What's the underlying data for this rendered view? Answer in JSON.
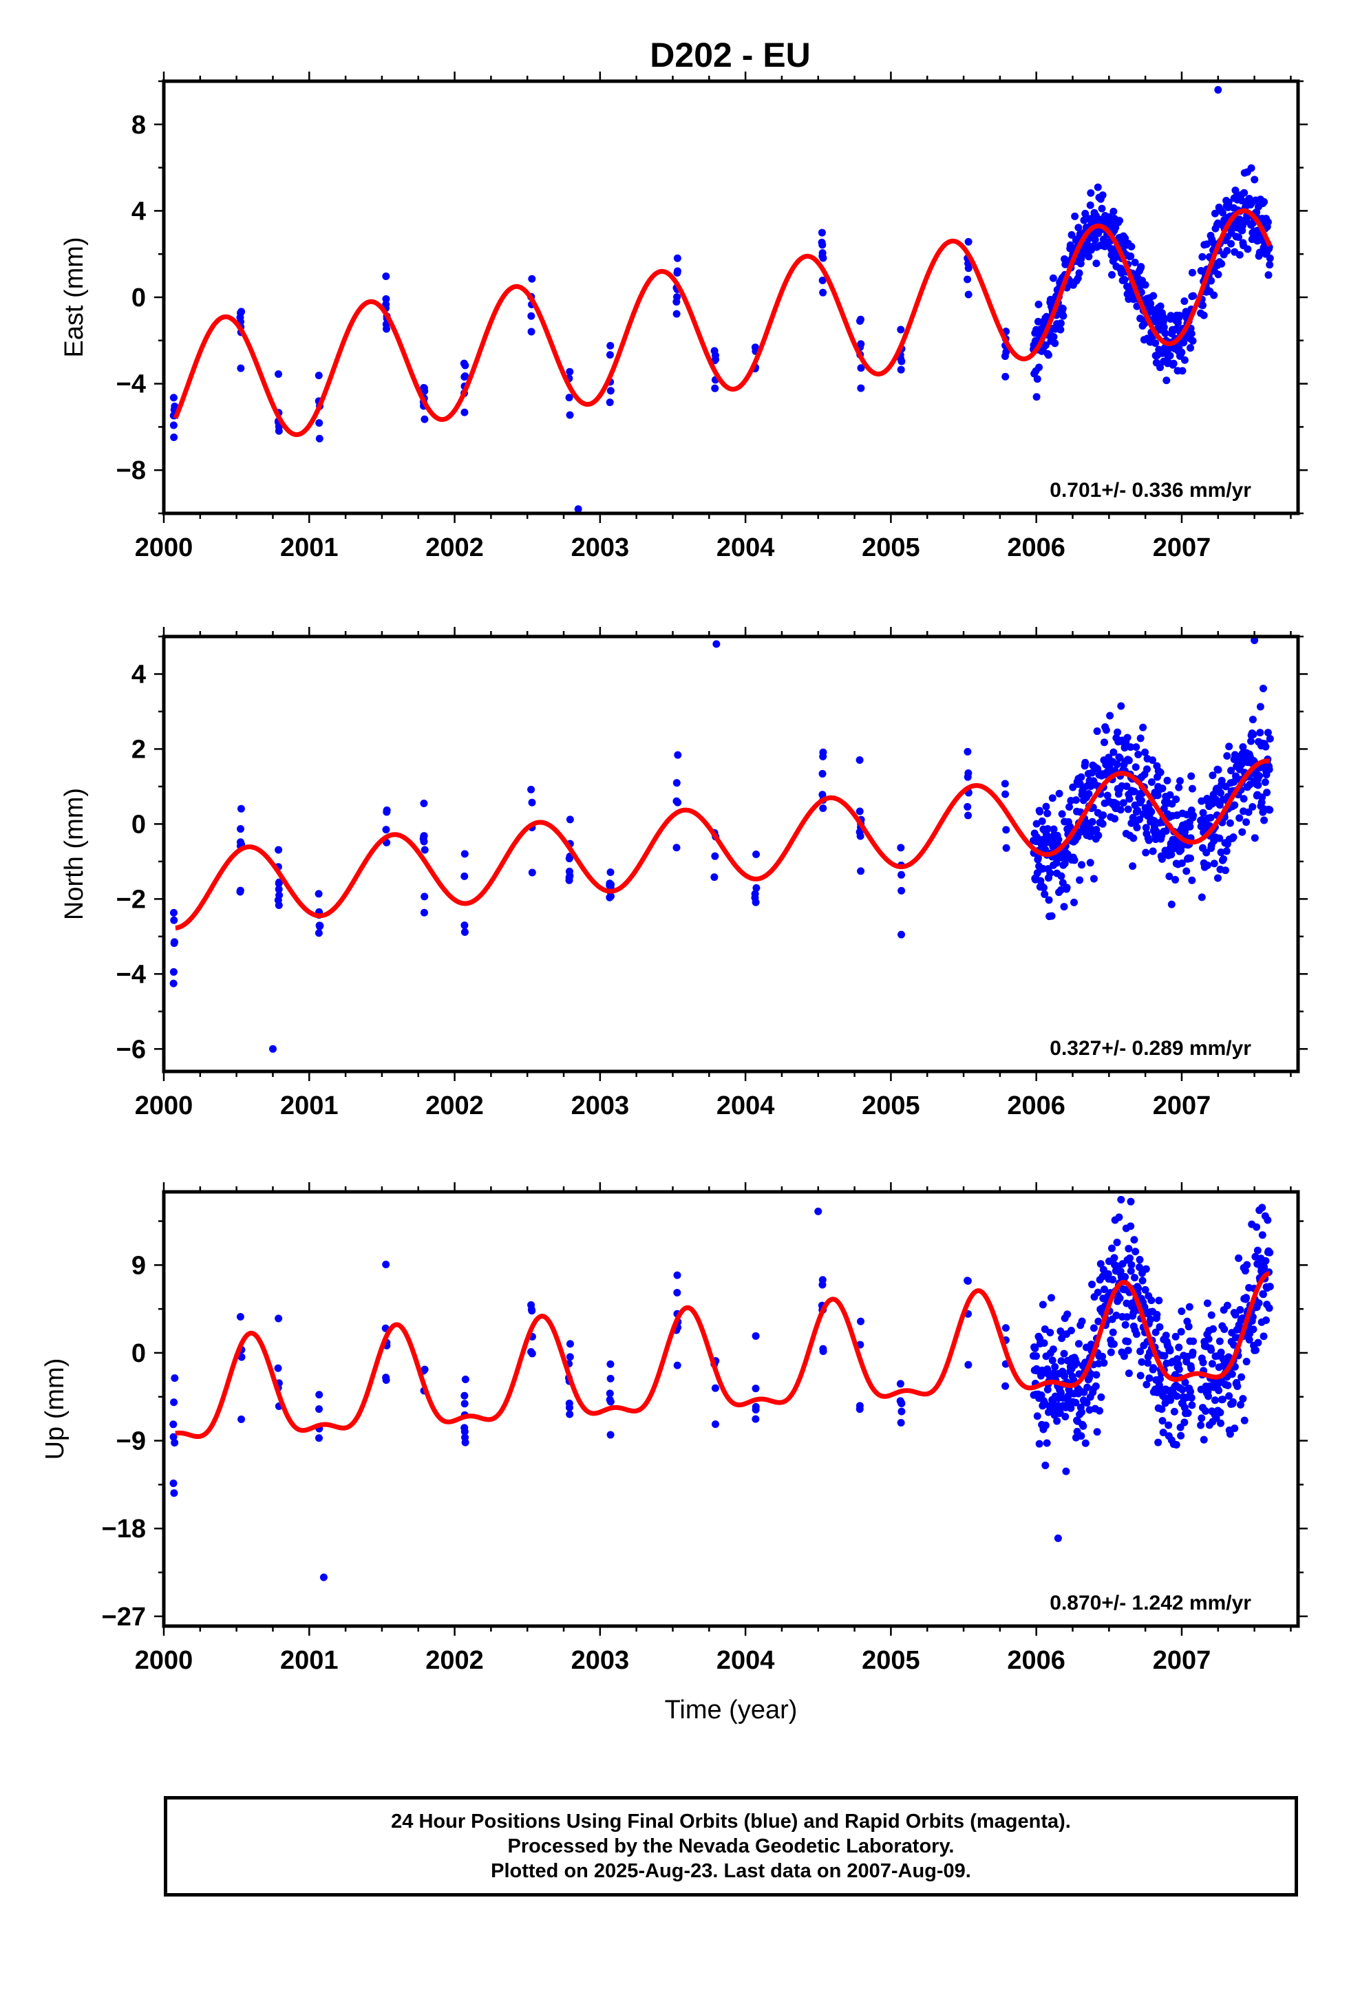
{
  "title": "D202 - EU",
  "colors": {
    "final_orbit": "#0000ff",
    "model_fit": "#ff0000",
    "rapid_orbit": "#ff00ff",
    "frame": "#000000"
  },
  "chart_data": [
    {
      "type": "scatter",
      "component": "East",
      "ylabel": "East (mm)",
      "xlabel": "",
      "xlim": [
        2000.0,
        2007.8
      ],
      "ylim": [
        -10.0,
        10.0
      ],
      "xticks": [
        2000,
        2001,
        2002,
        2003,
        2004,
        2005,
        2006,
        2007
      ],
      "yticks": [
        8,
        4,
        0,
        -4,
        -8
      ],
      "rate_text": "0.701+/- 0.336 mm/yr",
      "model": {
        "trend_mm_per_yr": 0.701,
        "offset": -4.1,
        "annual_amplitude": 2.9,
        "annual_peak_phase": 0.42,
        "semiannual_amplitude": 0.0
      },
      "data_summary": {
        "sparse_epoch_counts": 18,
        "dense_start": 2005.98,
        "dense_end": 2007.61,
        "scatter_mm": 1.1,
        "outliers": [
          [
            2007.25,
            9.6
          ],
          [
            2002.85,
            -9.8
          ]
        ]
      }
    },
    {
      "type": "scatter",
      "component": "North",
      "ylabel": "North (mm)",
      "xlabel": "",
      "xlim": [
        2000.0,
        2007.8
      ],
      "ylim": [
        -6.6,
        5.0
      ],
      "xticks": [
        2000,
        2001,
        2002,
        2003,
        2004,
        2005,
        2006,
        2007
      ],
      "yticks": [
        4,
        2,
        0,
        -2,
        -4,
        -6
      ],
      "rate_text": "0.327+/- 0.289 mm/yr",
      "model": {
        "trend_mm_per_yr": 0.327,
        "offset": -1.8,
        "annual_amplitude": 1.0,
        "annual_peak_phase": 0.58,
        "semiannual_amplitude": 0.0
      },
      "data_summary": {
        "sparse_epoch_counts": 18,
        "dense_start": 2005.98,
        "dense_end": 2007.61,
        "scatter_mm": 1.05,
        "outliers": [
          [
            2003.8,
            4.8
          ],
          [
            2007.5,
            4.9
          ],
          [
            2000.75,
            -6.0
          ]
        ]
      }
    },
    {
      "type": "scatter",
      "component": "Up",
      "ylabel": "Up (mm)",
      "xlabel": "Time (year)",
      "xlim": [
        2000.0,
        2007.8
      ],
      "ylim": [
        -28.0,
        16.5
      ],
      "xticks": [
        2000,
        2001,
        2002,
        2003,
        2004,
        2005,
        2006,
        2007
      ],
      "yticks": [
        9,
        0,
        -9,
        -18,
        -27
      ],
      "rate_text": "0.870+/- 1.242 mm/yr",
      "model": {
        "trend_mm_per_yr": 0.87,
        "offset": -5.3,
        "annual_amplitude": 4.9,
        "annual_peak_phase": 0.6,
        "semiannual_amplitude": 1.9
      },
      "data_summary": {
        "sparse_epoch_counts": 18,
        "dense_start": 2005.98,
        "dense_end": 2007.61,
        "scatter_mm": 4.8,
        "outliers": [
          [
            2004.5,
            14.5
          ],
          [
            2006.65,
            15.5
          ],
          [
            2001.1,
            -23.0
          ],
          [
            2006.15,
            -19.0
          ]
        ]
      }
    }
  ],
  "footer": {
    "line1": "24 Hour Positions Using Final Orbits (blue) and Rapid Orbits (magenta).",
    "line2": "Processed by the Nevada Geodetic Laboratory.",
    "line3": "Plotted on 2025-Aug-23. Last data on 2007-Aug-09."
  }
}
